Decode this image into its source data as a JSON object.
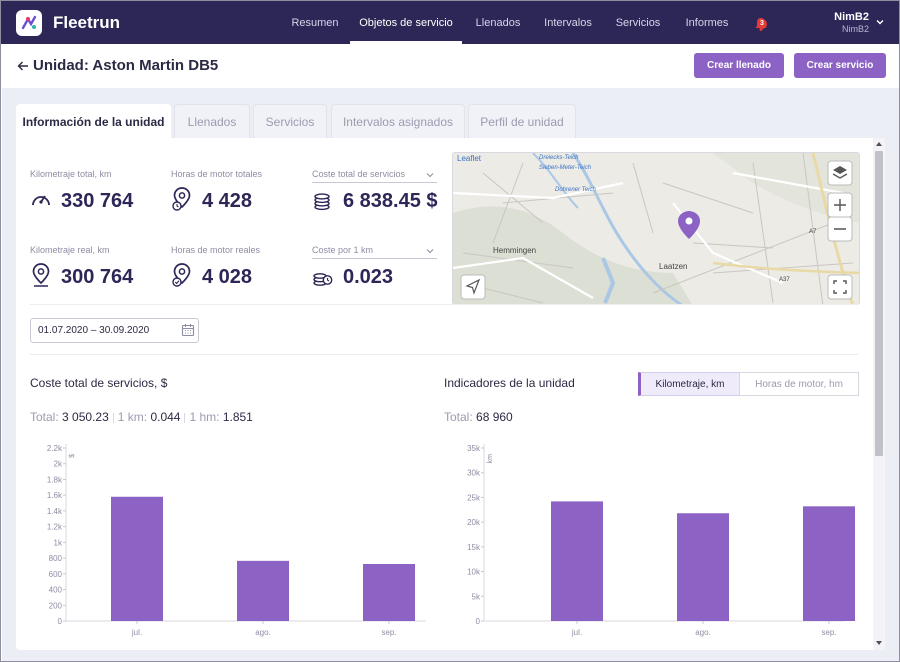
{
  "app": {
    "brand": "Fleetrun"
  },
  "nav": [
    {
      "label": "Resumen",
      "active": false
    },
    {
      "label": "Objetos de servicio",
      "active": true
    },
    {
      "label": "Llenados",
      "active": false
    },
    {
      "label": "Intervalos",
      "active": false
    },
    {
      "label": "Servicios",
      "active": false
    },
    {
      "label": "Informes",
      "active": false
    }
  ],
  "notifications": {
    "count": "3",
    "icon": "bell-icon"
  },
  "user": {
    "name": "NimB2",
    "account": "NimB2"
  },
  "header": {
    "title": "Unidad: Aston Martin DB5",
    "actions": {
      "create_fill": "Crear llenado",
      "create_service": "Crear servicio"
    }
  },
  "tabs": [
    {
      "label": "Información de la unidad",
      "active": true
    },
    {
      "label": "Llenados",
      "active": false
    },
    {
      "label": "Servicios",
      "active": false
    },
    {
      "label": "Intervalos asignados",
      "active": false
    },
    {
      "label": "Perfil de unidad",
      "active": false
    }
  ],
  "stats": {
    "total_mileage": {
      "label": "Kilometraje total, km",
      "value": "330 764",
      "icon": "speedometer-icon"
    },
    "total_engine_hours": {
      "label": "Horas de motor totales",
      "value": "4 428",
      "icon": "engine-hours-pin-icon"
    },
    "total_service_cost": {
      "label": "Coste total de servicios",
      "value": "6 838.45 $",
      "icon": "coins-icon"
    },
    "real_mileage": {
      "label": "Kilometraje real, km",
      "value": "300 764",
      "icon": "location-pin-icon"
    },
    "real_engine_hours": {
      "label": "Horas de motor reales",
      "value": "4 028",
      "icon": "engine-hours-check-icon"
    },
    "cost_per_km": {
      "label": "Coste por 1 km",
      "value": "0.023",
      "icon": "coins-clock-icon"
    }
  },
  "map": {
    "attribution": "Leaflet",
    "place_labels": [
      "Dreiecks-Teich",
      "Sieben-Meter-Teich",
      "Dohrener Teich",
      "Hemmingen",
      "Laatzen",
      "A37",
      "A7"
    ],
    "controls": [
      "layers-icon",
      "zoom-in-icon",
      "zoom-out-icon",
      "locate-icon",
      "fullscreen-icon"
    ]
  },
  "date_range": {
    "value": "01.07.2020 – 30.09.2020",
    "icon": "calendar-icon"
  },
  "cost_chart": {
    "title": "Coste total de servicios, $",
    "total_label": "Total:",
    "total_value": "3 050.23",
    "per_km_label": "1 km:",
    "per_km_value": "0.044",
    "per_hm_label": "1 hm:",
    "per_hm_value": "1.851",
    "unit_label": "$"
  },
  "unit_chart": {
    "title": "Indicadores de la unidad",
    "total_label": "Total:",
    "total_value": "68 960",
    "unit_label": "km",
    "toggle": {
      "mileage": "Kilometraje, km",
      "engine_hours": "Horas de motor, hm",
      "selected": "mileage"
    }
  },
  "chart_data": [
    {
      "type": "bar",
      "title": "Coste total de servicios, $",
      "ylabel": "$",
      "categories": [
        "jul.",
        "ago.",
        "sep."
      ],
      "values": [
        1580,
        765,
        725
      ],
      "ylim": [
        0,
        2200
      ],
      "yticks": [
        0,
        200,
        400,
        600,
        800,
        1000,
        1200,
        1400,
        1600,
        1800,
        2000,
        2200
      ],
      "ytick_labels": [
        "0",
        "200",
        "400",
        "600",
        "800",
        "1k",
        "1.2k",
        "1.4k",
        "1.6k",
        "1.8k",
        "2k",
        "2.2k"
      ],
      "color": "#8c62c4",
      "grid": false
    },
    {
      "type": "bar",
      "title": "Indicadores de la unidad",
      "ylabel": "km",
      "categories": [
        "jul.",
        "ago.",
        "sep."
      ],
      "values": [
        24200,
        21800,
        23200
      ],
      "ylim": [
        0,
        35000
      ],
      "yticks": [
        0,
        5000,
        10000,
        15000,
        20000,
        25000,
        30000,
        35000
      ],
      "ytick_labels": [
        "0",
        "5k",
        "10k",
        "15k",
        "20k",
        "25k",
        "30k",
        "35k"
      ],
      "color": "#8c62c4",
      "grid": false
    }
  ]
}
